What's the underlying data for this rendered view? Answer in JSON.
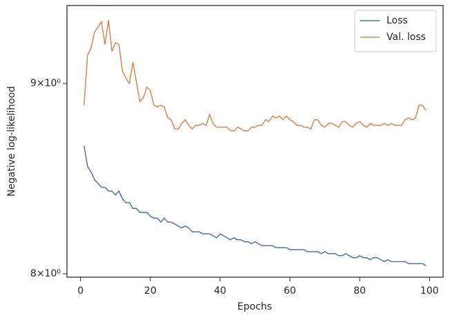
{
  "chart_data": {
    "type": "line",
    "xlabel": "Epochs",
    "ylabel": "Negative log-likelihood",
    "x": [
      1,
      2,
      3,
      4,
      5,
      6,
      7,
      8,
      9,
      10,
      11,
      12,
      13,
      14,
      15,
      16,
      17,
      18,
      19,
      20,
      21,
      22,
      23,
      24,
      25,
      26,
      27,
      28,
      29,
      30,
      31,
      32,
      33,
      34,
      35,
      36,
      37,
      38,
      39,
      40,
      41,
      42,
      43,
      44,
      45,
      46,
      47,
      48,
      49,
      50,
      51,
      52,
      53,
      54,
      55,
      56,
      57,
      58,
      59,
      60,
      61,
      62,
      63,
      64,
      65,
      66,
      67,
      68,
      69,
      70,
      71,
      72,
      73,
      74,
      75,
      76,
      77,
      78,
      79,
      80,
      81,
      82,
      83,
      84,
      85,
      86,
      87,
      88,
      89,
      90,
      91,
      92,
      93,
      94,
      95,
      96,
      97,
      98,
      99
    ],
    "series": [
      {
        "name": "Loss",
        "color": "#4c72b0",
        "values": [
          8.66,
          8.55,
          8.52,
          8.48,
          8.46,
          8.44,
          8.44,
          8.42,
          8.42,
          8.4,
          8.42,
          8.38,
          8.36,
          8.36,
          8.33,
          8.33,
          8.31,
          8.31,
          8.31,
          8.29,
          8.28,
          8.28,
          8.26,
          8.28,
          8.26,
          8.26,
          8.25,
          8.24,
          8.23,
          8.24,
          8.23,
          8.21,
          8.21,
          8.21,
          8.2,
          8.2,
          8.2,
          8.19,
          8.18,
          8.2,
          8.19,
          8.18,
          8.17,
          8.18,
          8.17,
          8.17,
          8.16,
          8.16,
          8.15,
          8.16,
          8.15,
          8.14,
          8.14,
          8.14,
          8.14,
          8.13,
          8.13,
          8.13,
          8.13,
          8.12,
          8.12,
          8.12,
          8.12,
          8.12,
          8.11,
          8.11,
          8.11,
          8.11,
          8.1,
          8.11,
          8.1,
          8.1,
          8.1,
          8.09,
          8.09,
          8.1,
          8.09,
          8.08,
          8.08,
          8.09,
          8.08,
          8.08,
          8.07,
          8.08,
          8.08,
          8.07,
          8.06,
          8.07,
          8.06,
          8.06,
          8.06,
          8.06,
          8.06,
          8.05,
          8.05,
          8.05,
          8.05,
          8.05,
          8.04
        ]
      },
      {
        "name": "Val. loss",
        "color": "#dd8452",
        "values": [
          8.88,
          9.16,
          9.2,
          9.29,
          9.32,
          9.35,
          9.22,
          9.36,
          9.18,
          9.23,
          9.22,
          9.07,
          9.03,
          9.0,
          9.12,
          9.01,
          8.9,
          8.92,
          8.98,
          8.96,
          8.88,
          8.87,
          8.88,
          8.87,
          8.81,
          8.8,
          8.75,
          8.75,
          8.78,
          8.8,
          8.77,
          8.75,
          8.77,
          8.77,
          8.78,
          8.77,
          8.83,
          8.78,
          8.76,
          8.76,
          8.76,
          8.76,
          8.74,
          8.74,
          8.76,
          8.75,
          8.74,
          8.74,
          8.76,
          8.76,
          8.77,
          8.77,
          8.8,
          8.79,
          8.82,
          8.81,
          8.82,
          8.8,
          8.82,
          8.8,
          8.79,
          8.77,
          8.77,
          8.76,
          8.76,
          8.75,
          8.8,
          8.8,
          8.77,
          8.76,
          8.78,
          8.78,
          8.77,
          8.76,
          8.79,
          8.79,
          8.77,
          8.76,
          8.78,
          8.79,
          8.77,
          8.76,
          8.78,
          8.77,
          8.77,
          8.77,
          8.78,
          8.77,
          8.78,
          8.77,
          8.77,
          8.77,
          8.8,
          8.81,
          8.8,
          8.81,
          8.88,
          8.88,
          8.85
        ]
      }
    ],
    "xlim": [
      -3.9,
      103.9
    ],
    "xticks": [
      0,
      20,
      40,
      60,
      80,
      100
    ],
    "ylim": [
      7.983,
      9.445
    ],
    "yticks": [
      {
        "value": 8,
        "label": "8×10⁰"
      },
      {
        "value": 9,
        "label": "9×10⁰"
      }
    ],
    "yscale": "log",
    "grid": false,
    "legend": "upper right"
  }
}
